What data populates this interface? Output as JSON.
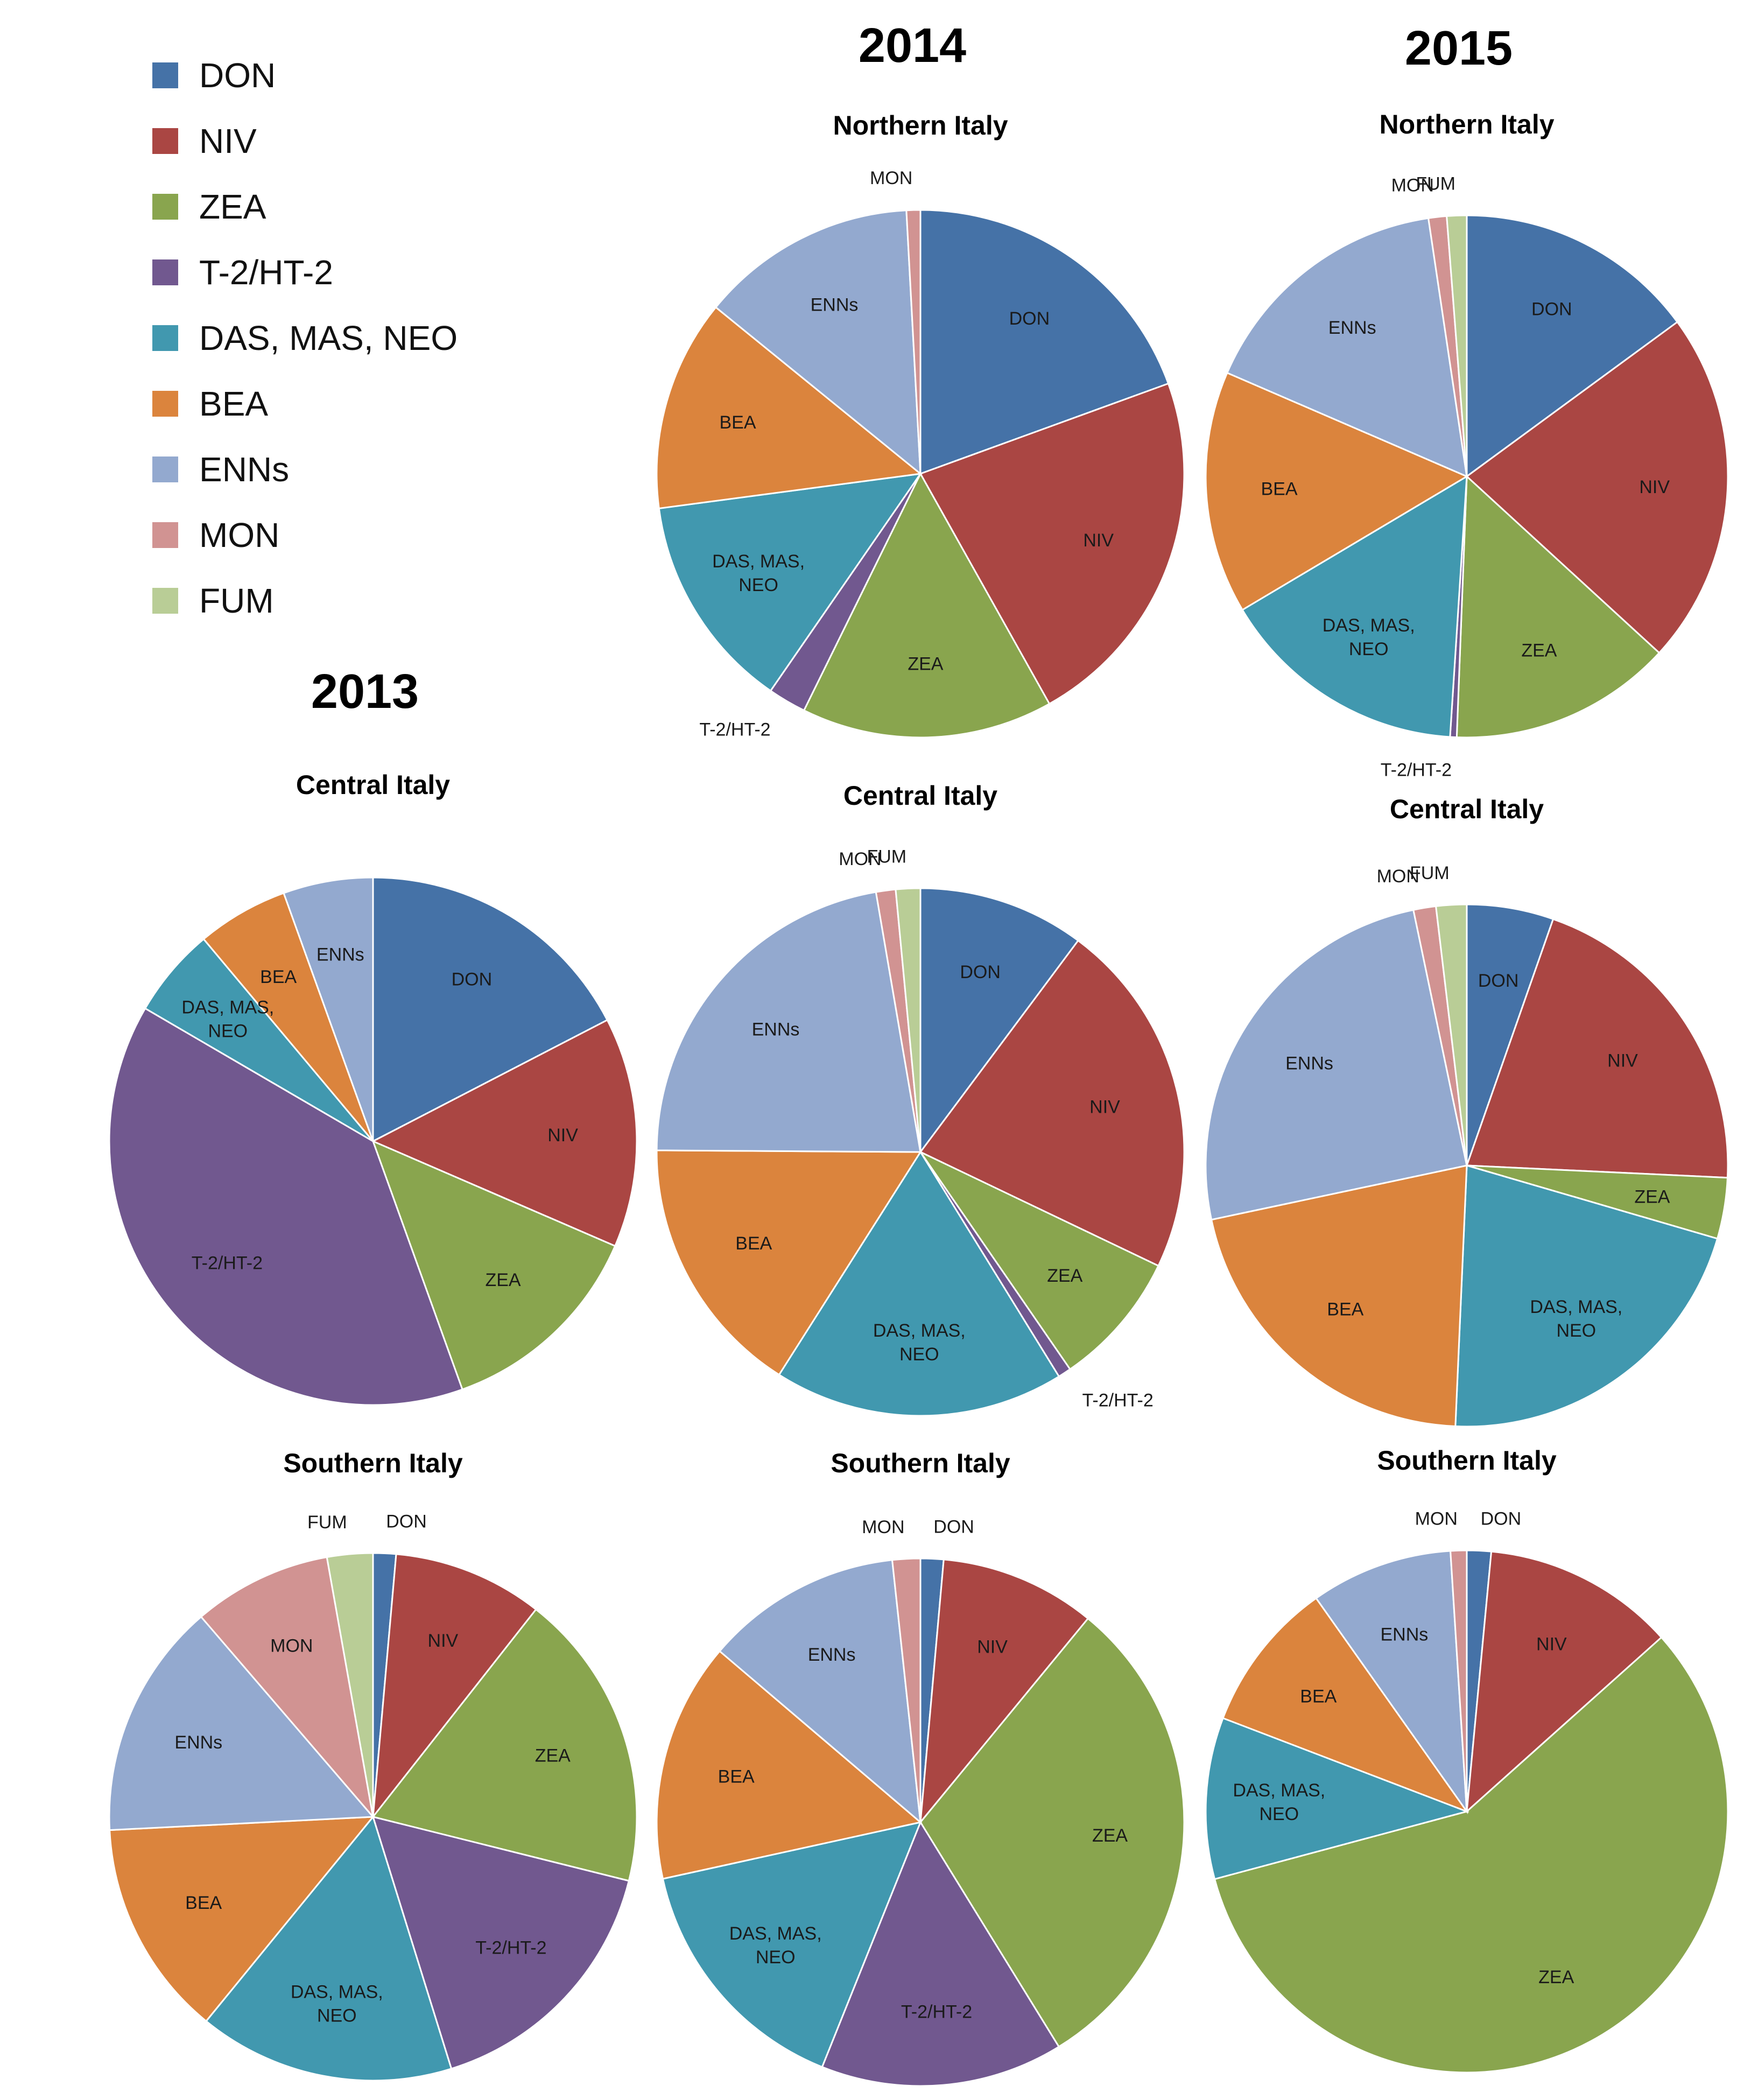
{
  "legend": [
    {
      "label": "DON",
      "color": "#4572A7"
    },
    {
      "label": "NIV",
      "color": "#AA4643"
    },
    {
      "label": "ZEA",
      "color": "#89A54E"
    },
    {
      "label": "T-2/HT-2",
      "color": "#71588F"
    },
    {
      "label": "DAS, MAS, NEO",
      "color": "#4198AF"
    },
    {
      "label": "BEA",
      "color": "#DB843D"
    },
    {
      "label": "ENNs",
      "color": "#93A9CF"
    },
    {
      "label": "MON",
      "color": "#D19392"
    },
    {
      "label": "FUM",
      "color": "#B9CD96"
    }
  ],
  "year_labels": [
    "2013",
    "2014",
    "2015"
  ],
  "chart_data": [
    {
      "type": "pie",
      "year": "2014",
      "title": "Northern Italy",
      "categories": [
        "DON",
        "NIV",
        "ZEA",
        "T-2/HT-2",
        "DAS, MAS, NEO",
        "BEA",
        "ENNs",
        "MON",
        "FUM"
      ],
      "values": [
        18.3,
        21.1,
        14.5,
        2.2,
        12.5,
        12.2,
        12.5,
        0.8,
        0.0
      ]
    },
    {
      "type": "pie",
      "year": "2015",
      "title": "Northern Italy",
      "categories": [
        "DON",
        "NIV",
        "ZEA",
        "T-2/HT-2",
        "DAS, MAS, NEO",
        "BEA",
        "ENNs",
        "MON",
        "FUM"
      ],
      "values": [
        14.6,
        21.4,
        13.5,
        0.4,
        15.1,
        14.7,
        15.8,
        1.1,
        1.2
      ]
    },
    {
      "type": "pie",
      "year": "2013",
      "title": "Central Italy",
      "categories": [
        "DON",
        "NIV",
        "ZEA",
        "T-2/HT-2",
        "DAS, MAS, NEO",
        "BEA",
        "ENNs",
        "MON",
        "FUM"
      ],
      "values": [
        17.4,
        14.1,
        13.0,
        38.9,
        5.5,
        5.6,
        5.5,
        0.0,
        0.0
      ]
    },
    {
      "type": "pie",
      "year": "2014",
      "title": "Central Italy",
      "categories": [
        "DON",
        "NIV",
        "ZEA",
        "T-2/HT-2",
        "DAS, MAS, NEO",
        "BEA",
        "ENNs",
        "MON",
        "FUM"
      ],
      "values": [
        10.2,
        21.9,
        8.3,
        0.8,
        17.8,
        16.1,
        22.2,
        1.2,
        1.5
      ]
    },
    {
      "type": "pie",
      "year": "2015",
      "title": "Central Italy",
      "categories": [
        "DON",
        "NIV",
        "ZEA",
        "T-2/HT-2",
        "DAS, MAS, NEO",
        "BEA",
        "ENNs",
        "MON",
        "FUM"
      ],
      "values": [
        5.4,
        20.5,
        3.8,
        0.0,
        21.3,
        21.1,
        25.2,
        1.4,
        1.9
      ]
    },
    {
      "type": "pie",
      "year": "2013",
      "title": "Southern Italy",
      "categories": [
        "DON",
        "NIV",
        "ZEA",
        "T-2/HT-2",
        "DAS, MAS, NEO",
        "BEA",
        "ENNs",
        "MON",
        "FUM"
      ],
      "values": [
        1.4,
        9.2,
        18.3,
        16.3,
        15.7,
        13.3,
        14.5,
        8.5,
        2.8
      ]
    },
    {
      "type": "pie",
      "year": "2014",
      "title": "Southern Italy",
      "categories": [
        "DON",
        "NIV",
        "ZEA",
        "T-2/HT-2",
        "DAS, MAS, NEO",
        "BEA",
        "ENNs",
        "MON",
        "FUM"
      ],
      "values": [
        1.4,
        9.5,
        30.1,
        14.8,
        15.4,
        14.6,
        12.0,
        1.7,
        0.0
      ]
    },
    {
      "type": "pie",
      "year": "2015",
      "title": "Southern Italy",
      "categories": [
        "DON",
        "NIV",
        "ZEA",
        "T-2/HT-2",
        "DAS, MAS, NEO",
        "BEA",
        "ENNs",
        "MON",
        "FUM"
      ],
      "values": [
        1.5,
        11.9,
        57.5,
        0.0,
        10.0,
        9.4,
        8.8,
        1.0,
        0.0
      ]
    }
  ]
}
